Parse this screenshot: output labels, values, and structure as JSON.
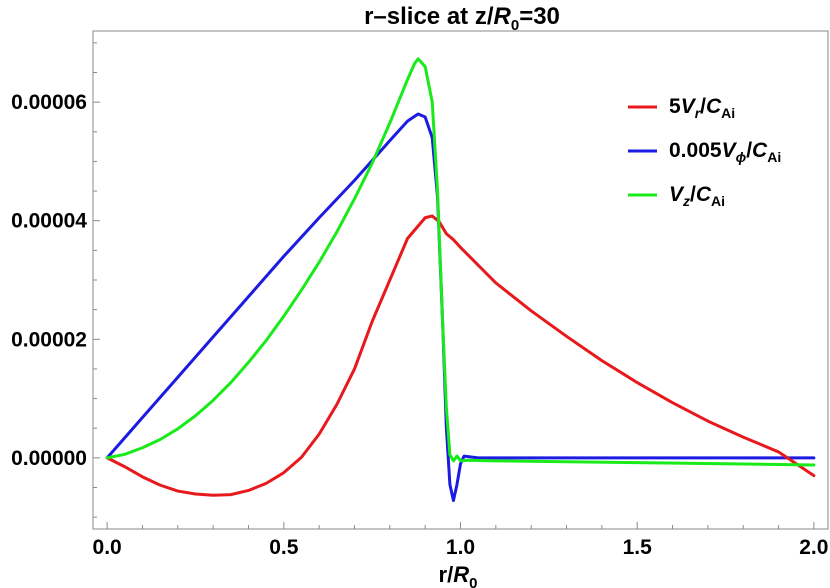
{
  "chart_data": {
    "type": "line",
    "title": {
      "prefix": "r–slice at z/",
      "var": "R",
      "sub": "0",
      "suffix": "=30"
    },
    "xlabel": {
      "prefix": "r/",
      "var": "R",
      "sub": "0"
    },
    "ylabel": "",
    "xlim": [
      -0.04,
      2.04
    ],
    "ylim": [
      -1.2e-05,
      7.2e-05
    ],
    "x_ticks": [
      {
        "value": 0.0,
        "label": "0.0"
      },
      {
        "value": 0.5,
        "label": "0.5"
      },
      {
        "value": 1.0,
        "label": "1.0"
      },
      {
        "value": 1.5,
        "label": "1.5"
      },
      {
        "value": 2.0,
        "label": "2.0"
      }
    ],
    "y_ticks": [
      {
        "value": 0.0,
        "label": "0.00000"
      },
      {
        "value": 2e-05,
        "label": "0.00002"
      },
      {
        "value": 4e-05,
        "label": "0.00004"
      },
      {
        "value": 6e-05,
        "label": "0.00006"
      }
    ],
    "grid": false,
    "legend_position": "top-right",
    "series": [
      {
        "key": "vr",
        "legend": {
          "coef": "5",
          "var": "V",
          "sub": "r",
          "den": "C",
          "den_sub": "Ai"
        },
        "color": "#e8191c",
        "x": [
          0.0,
          0.05,
          0.1,
          0.15,
          0.2,
          0.25,
          0.3,
          0.35,
          0.4,
          0.45,
          0.5,
          0.55,
          0.6,
          0.65,
          0.7,
          0.75,
          0.8,
          0.85,
          0.9,
          0.92,
          0.94,
          0.96,
          0.98,
          1.0,
          1.1,
          1.2,
          1.3,
          1.4,
          1.5,
          1.6,
          1.7,
          1.8,
          1.9,
          2.0
        ],
        "y": [
          0.0,
          -1.5e-06,
          -3.2e-06,
          -4.6e-06,
          -5.6e-06,
          -6.1e-06,
          -6.3e-06,
          -6.2e-06,
          -5.5e-06,
          -4.3e-06,
          -2.5e-06,
          1e-07,
          4e-06,
          9e-06,
          1.5e-05,
          2.3e-05,
          3e-05,
          3.7e-05,
          4.05e-05,
          4.08e-05,
          3.98e-05,
          3.78e-05,
          3.68e-05,
          3.55e-05,
          2.95e-05,
          2.48e-05,
          2.05e-05,
          1.64e-05,
          1.27e-05,
          9.3e-06,
          6.2e-06,
          3.5e-06,
          1e-06,
          -3e-06
        ]
      },
      {
        "key": "vphi",
        "legend": {
          "coef": "0.005",
          "var": "V",
          "sub": "ϕ",
          "den": "C",
          "den_sub": "Ai"
        },
        "color": "#1b1be3",
        "x": [
          0.0,
          0.1,
          0.2,
          0.3,
          0.4,
          0.5,
          0.6,
          0.7,
          0.8,
          0.85,
          0.88,
          0.9,
          0.92,
          0.935,
          0.95,
          0.96,
          0.97,
          0.98,
          0.99,
          1.0,
          1.01,
          1.05,
          1.2,
          1.5,
          2.0
        ],
        "y": [
          0.0,
          6.8e-06,
          1.36e-05,
          2.04e-05,
          2.72e-05,
          3.4e-05,
          4.05e-05,
          4.68e-05,
          5.35e-05,
          5.68e-05,
          5.8e-05,
          5.75e-05,
          5.4e-05,
          4.4e-05,
          2.2e-05,
          5e-06,
          -4.5e-06,
          -7.2e-06,
          -4.5e-06,
          -1e-06,
          3e-07,
          0.0,
          0.0,
          0.0,
          0.0
        ]
      },
      {
        "key": "vz",
        "legend": {
          "coef": "",
          "var": "V",
          "sub": "z",
          "den": "C",
          "den_sub": "Ai"
        },
        "color": "#19ea19",
        "x": [
          0.0,
          0.05,
          0.1,
          0.15,
          0.2,
          0.25,
          0.3,
          0.35,
          0.4,
          0.45,
          0.5,
          0.55,
          0.6,
          0.65,
          0.7,
          0.75,
          0.8,
          0.85,
          0.87,
          0.88,
          0.9,
          0.92,
          0.935,
          0.95,
          0.96,
          0.97,
          0.98,
          0.99,
          1.0,
          1.02,
          1.1,
          1.5,
          2.0
        ],
        "y": [
          0.0,
          6e-07,
          1.7e-06,
          3.1e-06,
          4.9e-06,
          7.1e-06,
          9.7e-06,
          1.27e-05,
          1.61e-05,
          1.98e-05,
          2.39e-05,
          2.83e-05,
          3.3e-05,
          3.81e-05,
          4.37e-05,
          4.97e-05,
          5.65e-05,
          6.38e-05,
          6.65e-05,
          6.73e-05,
          6.6e-05,
          6e-05,
          4.5e-05,
          2.2e-05,
          8.5e-06,
          5e-07,
          -5e-07,
          3e-07,
          -5e-07,
          -4e-07,
          -5e-07,
          -8e-07,
          -1.2e-06
        ]
      }
    ]
  }
}
